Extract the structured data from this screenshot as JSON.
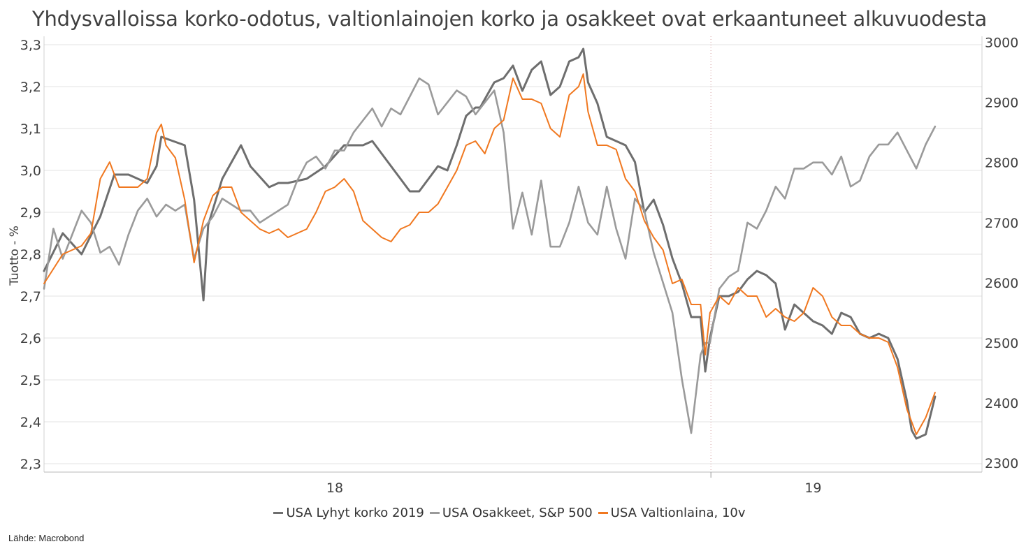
{
  "chart_data": {
    "type": "line",
    "title": "Yhdysvalloissa korko-odotus, valtionlainojen korko ja osakkeet ovat erkaantuneet alkuvuodesta",
    "ylabel_left": "Tuotto - %",
    "ylabel_right": "",
    "source": "Lähde: Macrobond",
    "x_tick_labels": [
      "18",
      "19"
    ],
    "x_ticks_at": [
      0.31,
      0.82
    ],
    "year_boundary_at": 0.711,
    "y_left": {
      "min": 2.28,
      "max": 3.32,
      "ticks": [
        "2,3",
        "2,4",
        "2,5",
        "2,6",
        "2,7",
        "2,8",
        "2,9",
        "3,0",
        "3,1",
        "3,2",
        "3,3"
      ],
      "tick_values": [
        2.3,
        2.4,
        2.5,
        2.6,
        2.7,
        2.8,
        2.9,
        3.0,
        3.1,
        3.2,
        3.3
      ]
    },
    "y_right": {
      "min": 2285,
      "max": 3010,
      "ticks": [
        "2300",
        "2400",
        "2500",
        "2600",
        "2700",
        "2800",
        "2900",
        "3000"
      ],
      "tick_values": [
        2300,
        2400,
        2500,
        2600,
        2700,
        2800,
        2900,
        3000
      ]
    },
    "grid": true,
    "legend_position": "bottom",
    "series": [
      {
        "name": "USA Lyhyt korko 2019",
        "axis": "left",
        "color": "#6e6e6e",
        "x": [
          0.0,
          0.02,
          0.04,
          0.06,
          0.075,
          0.09,
          0.11,
          0.12,
          0.125,
          0.15,
          0.16,
          0.17,
          0.175,
          0.19,
          0.2,
          0.21,
          0.22,
          0.24,
          0.25,
          0.26,
          0.28,
          0.3,
          0.32,
          0.34,
          0.35,
          0.36,
          0.38,
          0.39,
          0.4,
          0.41,
          0.42,
          0.43,
          0.44,
          0.45,
          0.46,
          0.465,
          0.47,
          0.48,
          0.49,
          0.5,
          0.51,
          0.52,
          0.53,
          0.54,
          0.55,
          0.56,
          0.57,
          0.575,
          0.58,
          0.59,
          0.6,
          0.61,
          0.62,
          0.63,
          0.64,
          0.65,
          0.66,
          0.67,
          0.68,
          0.69,
          0.7,
          0.705,
          0.71,
          0.72,
          0.73,
          0.74,
          0.75,
          0.76,
          0.77,
          0.78,
          0.79,
          0.8,
          0.81,
          0.82,
          0.83,
          0.84,
          0.85,
          0.86,
          0.87,
          0.88,
          0.89,
          0.9,
          0.91,
          0.92,
          0.925,
          0.93,
          0.94,
          0.95
        ],
        "y": [
          2.76,
          2.85,
          2.8,
          2.89,
          2.99,
          2.99,
          2.97,
          3.01,
          3.08,
          3.06,
          2.93,
          2.69,
          2.87,
          2.98,
          3.02,
          3.06,
          3.01,
          2.96,
          2.97,
          2.97,
          2.98,
          3.01,
          3.06,
          3.06,
          3.07,
          3.04,
          2.98,
          2.95,
          2.95,
          2.98,
          3.01,
          3.0,
          3.06,
          3.13,
          3.15,
          3.15,
          3.17,
          3.21,
          3.22,
          3.25,
          3.19,
          3.24,
          3.26,
          3.18,
          3.2,
          3.26,
          3.27,
          3.29,
          3.21,
          3.16,
          3.08,
          3.07,
          3.06,
          3.02,
          2.9,
          2.93,
          2.87,
          2.79,
          2.73,
          2.65,
          2.65,
          2.52,
          2.6,
          2.7,
          2.7,
          2.71,
          2.74,
          2.76,
          2.75,
          2.73,
          2.62,
          2.68,
          2.66,
          2.64,
          2.63,
          2.61,
          2.66,
          2.65,
          2.61,
          2.6,
          2.61,
          2.6,
          2.55,
          2.45,
          2.38,
          2.36,
          2.37,
          2.46
        ]
      },
      {
        "name": "USA Osakkeet, S&P 500",
        "axis": "right",
        "color": "#9a9a9a",
        "x": [
          0.0,
          0.01,
          0.02,
          0.03,
          0.04,
          0.05,
          0.06,
          0.07,
          0.08,
          0.09,
          0.1,
          0.11,
          0.12,
          0.13,
          0.14,
          0.15,
          0.16,
          0.17,
          0.18,
          0.19,
          0.2,
          0.21,
          0.22,
          0.23,
          0.24,
          0.25,
          0.26,
          0.27,
          0.28,
          0.29,
          0.3,
          0.31,
          0.32,
          0.33,
          0.34,
          0.35,
          0.36,
          0.37,
          0.38,
          0.39,
          0.4,
          0.41,
          0.42,
          0.43,
          0.44,
          0.45,
          0.46,
          0.47,
          0.48,
          0.49,
          0.5,
          0.51,
          0.52,
          0.53,
          0.54,
          0.55,
          0.56,
          0.57,
          0.58,
          0.59,
          0.6,
          0.61,
          0.62,
          0.63,
          0.64,
          0.65,
          0.66,
          0.67,
          0.68,
          0.69,
          0.7,
          0.705,
          0.71,
          0.72,
          0.73,
          0.74,
          0.75,
          0.76,
          0.77,
          0.78,
          0.79,
          0.8,
          0.81,
          0.82,
          0.83,
          0.84,
          0.85,
          0.86,
          0.87,
          0.88,
          0.89,
          0.9,
          0.91,
          0.92,
          0.93,
          0.94,
          0.95
        ],
        "y": [
          2590,
          2690,
          2640,
          2680,
          2720,
          2700,
          2650,
          2660,
          2630,
          2680,
          2720,
          2740,
          2710,
          2730,
          2720,
          2730,
          2640,
          2690,
          2710,
          2740,
          2730,
          2720,
          2720,
          2700,
          2710,
          2720,
          2730,
          2770,
          2800,
          2810,
          2790,
          2820,
          2820,
          2850,
          2870,
          2890,
          2860,
          2890,
          2880,
          2910,
          2940,
          2930,
          2880,
          2900,
          2920,
          2910,
          2880,
          2900,
          2920,
          2850,
          2690,
          2750,
          2680,
          2770,
          2660,
          2660,
          2700,
          2760,
          2700,
          2680,
          2760,
          2690,
          2640,
          2740,
          2720,
          2650,
          2600,
          2550,
          2440,
          2350,
          2480,
          2500,
          2500,
          2590,
          2610,
          2620,
          2700,
          2690,
          2720,
          2760,
          2740,
          2790,
          2790,
          2800,
          2800,
          2780,
          2810,
          2760,
          2770,
          2810,
          2830,
          2830,
          2850,
          2820,
          2790,
          2830,
          2860
        ]
      },
      {
        "name": "USA Valtionlaina, 10v",
        "axis": "left",
        "color": "#f07820",
        "x": [
          0.0,
          0.02,
          0.04,
          0.05,
          0.06,
          0.07,
          0.08,
          0.09,
          0.1,
          0.11,
          0.12,
          0.125,
          0.13,
          0.14,
          0.15,
          0.16,
          0.17,
          0.18,
          0.19,
          0.2,
          0.21,
          0.22,
          0.23,
          0.24,
          0.25,
          0.26,
          0.27,
          0.28,
          0.29,
          0.3,
          0.31,
          0.32,
          0.33,
          0.34,
          0.35,
          0.36,
          0.37,
          0.38,
          0.39,
          0.4,
          0.41,
          0.42,
          0.43,
          0.44,
          0.45,
          0.46,
          0.47,
          0.48,
          0.49,
          0.5,
          0.51,
          0.52,
          0.53,
          0.54,
          0.55,
          0.56,
          0.57,
          0.575,
          0.58,
          0.59,
          0.6,
          0.61,
          0.62,
          0.63,
          0.64,
          0.65,
          0.66,
          0.67,
          0.68,
          0.69,
          0.7,
          0.705,
          0.71,
          0.72,
          0.73,
          0.74,
          0.75,
          0.76,
          0.77,
          0.78,
          0.79,
          0.8,
          0.81,
          0.82,
          0.83,
          0.84,
          0.85,
          0.86,
          0.87,
          0.88,
          0.89,
          0.9,
          0.91,
          0.92,
          0.925,
          0.93,
          0.94,
          0.95
        ],
        "y": [
          2.73,
          2.8,
          2.82,
          2.85,
          2.98,
          3.02,
          2.96,
          2.96,
          2.96,
          2.98,
          3.09,
          3.11,
          3.06,
          3.03,
          2.93,
          2.78,
          2.88,
          2.94,
          2.96,
          2.96,
          2.9,
          2.88,
          2.86,
          2.85,
          2.86,
          2.84,
          2.85,
          2.86,
          2.9,
          2.95,
          2.96,
          2.98,
          2.95,
          2.88,
          2.86,
          2.84,
          2.83,
          2.86,
          2.87,
          2.9,
          2.9,
          2.92,
          2.96,
          3.0,
          3.06,
          3.07,
          3.04,
          3.1,
          3.12,
          3.22,
          3.17,
          3.17,
          3.16,
          3.1,
          3.08,
          3.18,
          3.2,
          3.23,
          3.14,
          3.06,
          3.06,
          3.05,
          2.98,
          2.95,
          2.88,
          2.84,
          2.81,
          2.73,
          2.74,
          2.68,
          2.68,
          2.56,
          2.66,
          2.7,
          2.68,
          2.72,
          2.7,
          2.7,
          2.65,
          2.67,
          2.65,
          2.64,
          2.66,
          2.72,
          2.7,
          2.65,
          2.63,
          2.63,
          2.61,
          2.6,
          2.6,
          2.59,
          2.53,
          2.43,
          2.4,
          2.37,
          2.41,
          2.47
        ]
      }
    ]
  }
}
